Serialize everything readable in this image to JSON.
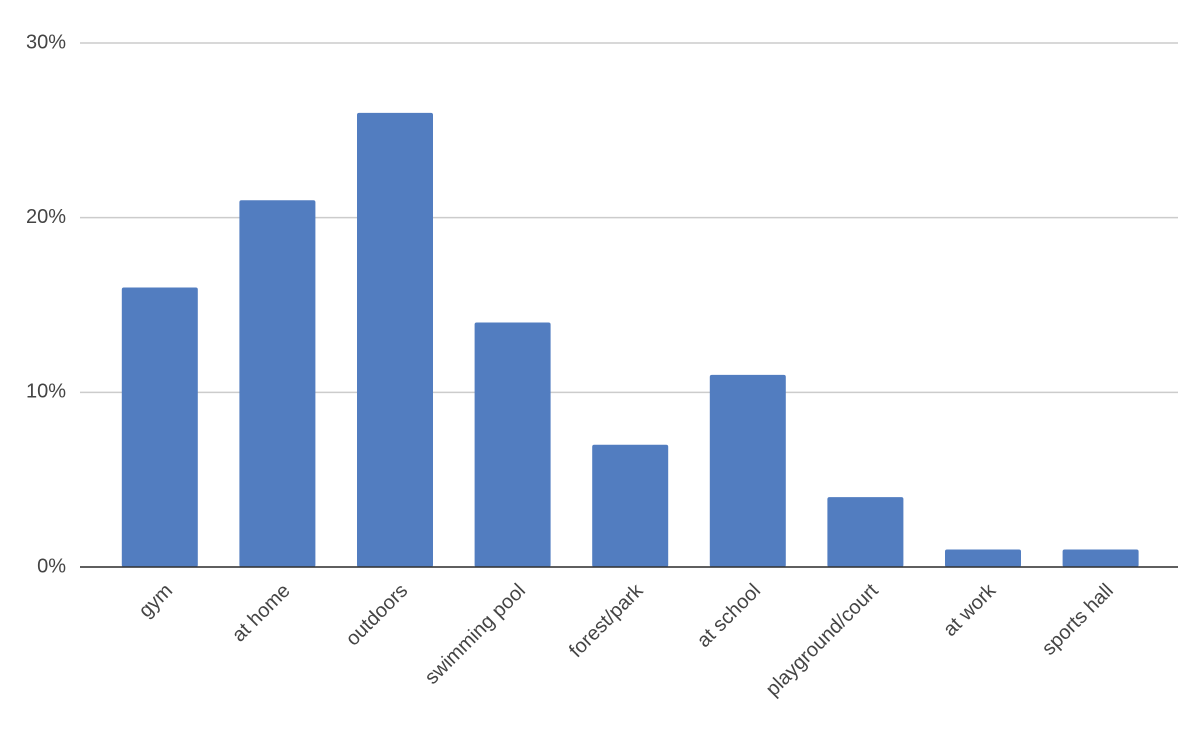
{
  "chart_data": {
    "type": "bar",
    "categories": [
      "gym",
      "at home",
      "outdoors",
      "swimming pool",
      "forest/park",
      "at school",
      "playground/court",
      "at work",
      "sports hall"
    ],
    "values": [
      16,
      21,
      26,
      14,
      7,
      11,
      4,
      1,
      1
    ],
    "color": "#527dc0",
    "ylim": [
      0,
      30
    ],
    "yticks": [
      {
        "value": 0,
        "label": "0%"
      },
      {
        "value": 10,
        "label": "10%"
      },
      {
        "value": 20,
        "label": "20%"
      },
      {
        "value": 30,
        "label": "30%"
      }
    ],
    "grid": true
  }
}
